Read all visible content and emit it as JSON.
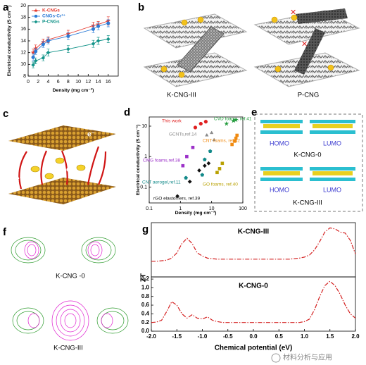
{
  "panels": [
    "a",
    "b",
    "c",
    "d",
    "e",
    "f",
    "g"
  ],
  "b_labels": [
    "K-CNG-III",
    "P-CNG"
  ],
  "c_labels": [
    "e⁻",
    "e⁻",
    "e⁻",
    "e⁻"
  ],
  "e_labels": [
    {
      "left": "HOMO",
      "right": "LUMO",
      "caption": "K-CNG-0"
    },
    {
      "left": "HOMO",
      "right": "LUMO",
      "caption": "K-CNG-III"
    }
  ],
  "f_labels": [
    "K-CNG -0",
    "K-CNG-III"
  ],
  "watermark": "材料分析与应用",
  "chart_data": [
    {
      "type": "line",
      "xlabel": "Density (mg cm⁻³)",
      "ylabel": "Electrical conductivity (S cm⁻¹)",
      "xlim": [
        0,
        18
      ],
      "xticks": [
        0,
        2,
        4,
        6,
        8,
        10,
        12,
        14,
        16
      ],
      "ylim": [
        8,
        20
      ],
      "yticks": [
        8,
        10,
        12,
        14,
        16,
        18,
        20
      ],
      "legend": "upper left",
      "x": [
        1,
        1.5,
        3,
        4,
        8,
        13,
        14,
        16
      ],
      "series": [
        {
          "name": "K-CNGs",
          "color": "#e53a2f",
          "marker": "star",
          "values": [
            12,
            12.7,
            13.8,
            14.2,
            15.2,
            16.6,
            16.8,
            17.4
          ],
          "errors": [
            0.6,
            0.6,
            0.5,
            0.5,
            0.6,
            0.6,
            0.5,
            0.7
          ]
        },
        {
          "name": "CNGs-Cr³⁺",
          "color": "#2b7bd6",
          "marker": "circle",
          "values": [
            11.2,
            12.2,
            13.4,
            14,
            14.8,
            16,
            16.5,
            17
          ],
          "errors": [
            0.6,
            0.5,
            0.5,
            0.5,
            0.6,
            0.6,
            0.6,
            0.6
          ]
        },
        {
          "name": "P-CNGs",
          "color": "#14948a",
          "marker": "diamond",
          "values": [
            9.9,
            10.6,
            11.1,
            12,
            12.6,
            13.5,
            14,
            14.3
          ],
          "errors": [
            0.5,
            0.5,
            0.5,
            0.6,
            0.6,
            0.6,
            0.6,
            0.6
          ]
        }
      ]
    },
    {
      "type": "scatter",
      "xlabel": "Density (mg cm⁻³)",
      "ylabel": "Electrical conductivity (S cm⁻¹)",
      "xscale": "log",
      "yscale": "log",
      "xlim": [
        0.1,
        100
      ],
      "xticks": [
        0.1,
        1,
        10,
        100
      ],
      "ylim": [
        0.03,
        20
      ],
      "yticks": [
        0.1,
        1,
        10
      ],
      "series": [
        {
          "name": "This work",
          "color": "#e02020",
          "marker": "circle",
          "x": [
            3,
            4.5,
            6.5
          ],
          "values": [
            9,
            12,
            14
          ]
        },
        {
          "name": "GCNTs,ref.14",
          "color": "#8a8a8a",
          "marker": "triangle",
          "x": [
            7,
            10,
            12
          ],
          "values": [
            5,
            6,
            3.5
          ]
        },
        {
          "name": "CVD foams, ref.41",
          "color": "#1f9a3a",
          "marker": "star",
          "x": [
            30,
            50,
            60
          ],
          "values": [
            12,
            15,
            16
          ]
        },
        {
          "name": "CNT foams, ref.42",
          "color": "#f08a10",
          "marker": "square",
          "x": [
            45,
            55,
            60,
            65
          ],
          "values": [
            2.5,
            3.2,
            4,
            5
          ]
        },
        {
          "name": "CMG foams,ref.38",
          "color": "#9b30c8",
          "marker": "square",
          "x": [
            1.2,
            1.6,
            2.5
          ],
          "values": [
            0.5,
            1,
            2
          ]
        },
        {
          "name": "CNT aerogel,ref.11",
          "color": "#138a8a",
          "marker": "pentagon",
          "x": [
            1.5,
            5,
            6,
            9
          ],
          "values": [
            0.2,
            0.25,
            0.8,
            1.5
          ]
        },
        {
          "name": "GO foams, ref.40",
          "color": "#b8a000",
          "marker": "square",
          "x": [
            15,
            18,
            22
          ],
          "values": [
            0.3,
            0.4,
            0.6
          ]
        },
        {
          "name": "rGO elastomers, ref.39",
          "color": "#111111",
          "marker": "diamond",
          "x": [
            0.8,
            2,
            4,
            6,
            8
          ],
          "values": [
            0.05,
            0.15,
            0.35,
            0.5,
            0.6
          ]
        }
      ]
    },
    {
      "type": "line",
      "title": "K-CNG-III",
      "xlim": [
        -2,
        2
      ],
      "ylim": [
        0,
        5.2
      ],
      "x": [
        -2,
        -1.9,
        -1.8,
        -1.7,
        -1.6,
        -1.5,
        -1.4,
        -1.3,
        -1.2,
        -1.1,
        -1,
        -0.9,
        -0.8,
        -0.7,
        -0.6,
        -0.5,
        -0.4,
        -0.3,
        -0.2,
        -0.1,
        0,
        0.1,
        0.2,
        0.3,
        0.4,
        0.5,
        0.6,
        0.7,
        0.8,
        0.9,
        1,
        1.1,
        1.2,
        1.3,
        1.4,
        1.5,
        1.6,
        1.7,
        1.8,
        1.9,
        2
      ],
      "series": [
        {
          "color": "#d42020",
          "dash": "dashdot",
          "values": [
            1.5,
            1.5,
            1.55,
            1.6,
            1.8,
            2.3,
            3.2,
            3.7,
            3.2,
            2.3,
            2,
            1.8,
            1.75,
            1.7,
            1.7,
            1.7,
            1.7,
            1.7,
            1.7,
            1.7,
            1.7,
            1.7,
            1.7,
            1.7,
            1.7,
            1.7,
            1.7,
            1.7,
            1.75,
            1.8,
            1.9,
            2.1,
            2.6,
            3.4,
            4.3,
            4.7,
            4.6,
            4.3,
            4.2,
            3.5,
            2.2
          ]
        }
      ]
    },
    {
      "type": "line",
      "title": "K-CNG-0",
      "xlabel": "Chemical potential (eV)",
      "ylabel": "ZT",
      "xlim": [
        -2,
        2
      ],
      "ylim": [
        0,
        1.25
      ],
      "xticks": [
        {
          "value": -2,
          "label": "-2.0"
        },
        -1.5,
        {
          "value": -1,
          "label": "-1.0"
        },
        -0.5,
        {
          "value": 0,
          "label": "0.0"
        },
        0.5,
        {
          "value": 1,
          "label": "1.0"
        },
        1.5,
        {
          "value": 2,
          "label": "2.0"
        }
      ],
      "yticks": [
        {
          "value": 0,
          "label": "0.0"
        },
        0.2,
        0.4,
        0.6,
        0.8,
        {
          "value": 1,
          "label": "1.0"
        },
        1.2
      ],
      "x": [
        -2,
        -1.9,
        -1.8,
        -1.7,
        -1.6,
        -1.5,
        -1.4,
        -1.3,
        -1.2,
        -1.1,
        -1,
        -0.9,
        -0.8,
        -0.7,
        -0.6,
        -0.5,
        -0.4,
        -0.3,
        -0.2,
        -0.1,
        0,
        0.1,
        0.2,
        0.3,
        0.4,
        0.5,
        0.6,
        0.7,
        0.8,
        0.9,
        1,
        1.1,
        1.2,
        1.3,
        1.4,
        1.5,
        1.6,
        1.7,
        1.8,
        1.9,
        2
      ],
      "series": [
        {
          "color": "#d42020",
          "dash": "dashdot",
          "values": [
            0.2,
            0.21,
            0.25,
            0.45,
            0.68,
            0.6,
            0.4,
            0.3,
            0.38,
            0.3,
            0.28,
            0.33,
            0.25,
            0.22,
            0.2,
            0.2,
            0.2,
            0.2,
            0.2,
            0.2,
            0.2,
            0.2,
            0.2,
            0.2,
            0.2,
            0.2,
            0.2,
            0.2,
            0.2,
            0.2,
            0.22,
            0.28,
            0.5,
            0.8,
            1.05,
            1.15,
            1.05,
            0.85,
            0.6,
            0.4,
            0.3
          ]
        }
      ]
    }
  ]
}
